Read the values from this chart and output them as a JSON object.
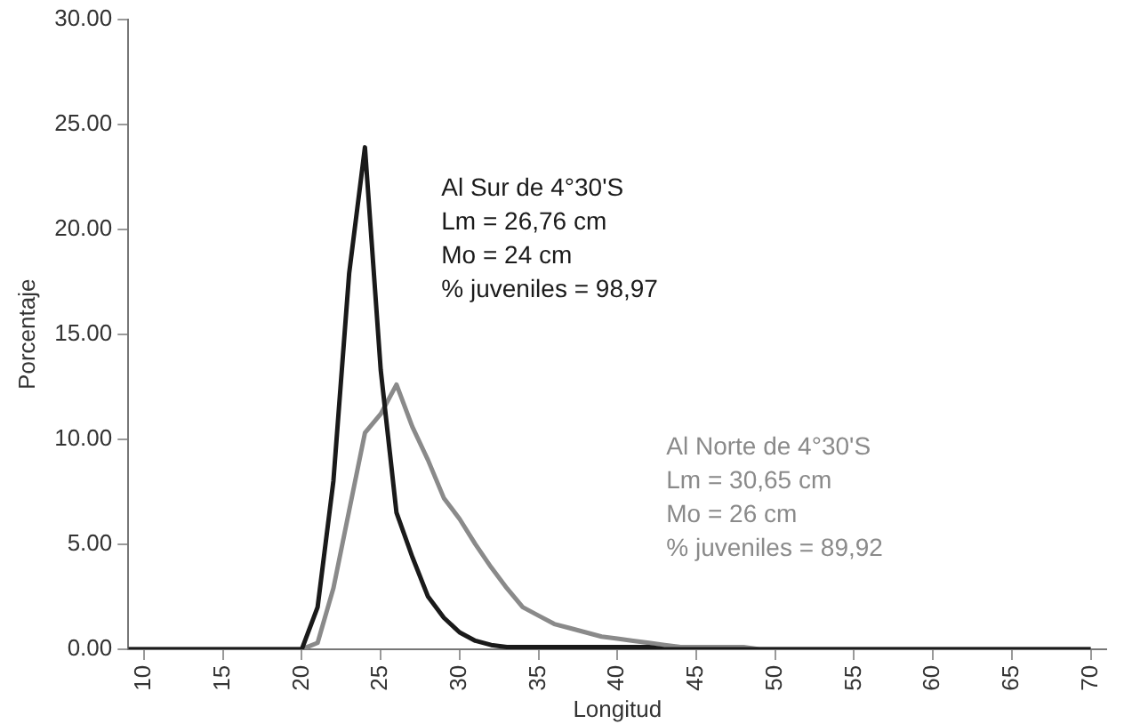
{
  "chart_data": {
    "type": "line",
    "xlabel": "Longitud",
    "ylabel": "Porcentaje",
    "x": [
      9,
      10,
      11,
      12,
      13,
      14,
      15,
      16,
      17,
      18,
      19,
      20,
      21,
      22,
      23,
      24,
      25,
      26,
      27,
      28,
      29,
      30,
      31,
      32,
      33,
      34,
      35,
      36,
      37,
      38,
      39,
      40,
      41,
      42,
      43,
      44,
      45,
      46,
      47,
      48,
      49,
      50,
      55,
      60,
      65,
      70
    ],
    "series": [
      {
        "color": "#1a1a1a",
        "values": [
          0,
          0,
          0,
          0,
          0,
          0,
          0,
          0,
          0,
          0,
          0,
          0,
          2,
          8,
          17.9,
          23.9,
          13.3,
          6.5,
          4.4,
          2.5,
          1.5,
          0.8,
          0.4,
          0.2,
          0.1,
          0.1,
          0.1,
          0.1,
          0.1,
          0.1,
          0.1,
          0.1,
          0.1,
          0.1,
          0,
          0,
          0,
          0,
          0,
          0,
          0,
          0,
          0,
          0,
          0,
          0
        ]
      },
      {
        "color": "#8a8a8a",
        "values": [
          0,
          0,
          0,
          0,
          0,
          0,
          0,
          0,
          0,
          0,
          0,
          0,
          0.3,
          2.9,
          6.6,
          10.3,
          11.2,
          12.6,
          10.6,
          9,
          7.2,
          6.2,
          5,
          3.9,
          2.9,
          2,
          1.6,
          1.2,
          1,
          0.8,
          0.6,
          0.5,
          0.4,
          0.3,
          0.2,
          0.1,
          0.1,
          0.1,
          0.1,
          0.1,
          0,
          0,
          0,
          0,
          0,
          0
        ]
      }
    ],
    "xlim": [
      9,
      71
    ],
    "xticks": [
      10,
      15,
      20,
      25,
      30,
      35,
      40,
      45,
      50,
      55,
      60,
      65,
      70
    ],
    "ylim": [
      0,
      30
    ],
    "yticks": [
      {
        "value": 0,
        "label": "0.00"
      },
      {
        "value": 5,
        "label": "5.00"
      },
      {
        "value": 10,
        "label": "10.00"
      },
      {
        "value": 15,
        "label": "15.00"
      },
      {
        "value": 20,
        "label": "20.00"
      },
      {
        "value": 25,
        "label": "25.00"
      },
      {
        "value": 30,
        "label": "30.00"
      }
    ],
    "grid": false,
    "legend": false,
    "marker": "none",
    "line_style": "solid",
    "annotations": [
      "Al Sur de 4°30'S\nLm = 26,76 cm\nMo = 24 cm\n% juveniles = 98,97",
      "Al Norte de 4°30'S\nLm = 30,65 cm\nMo = 26 cm\n% juveniles = 89,92"
    ]
  }
}
